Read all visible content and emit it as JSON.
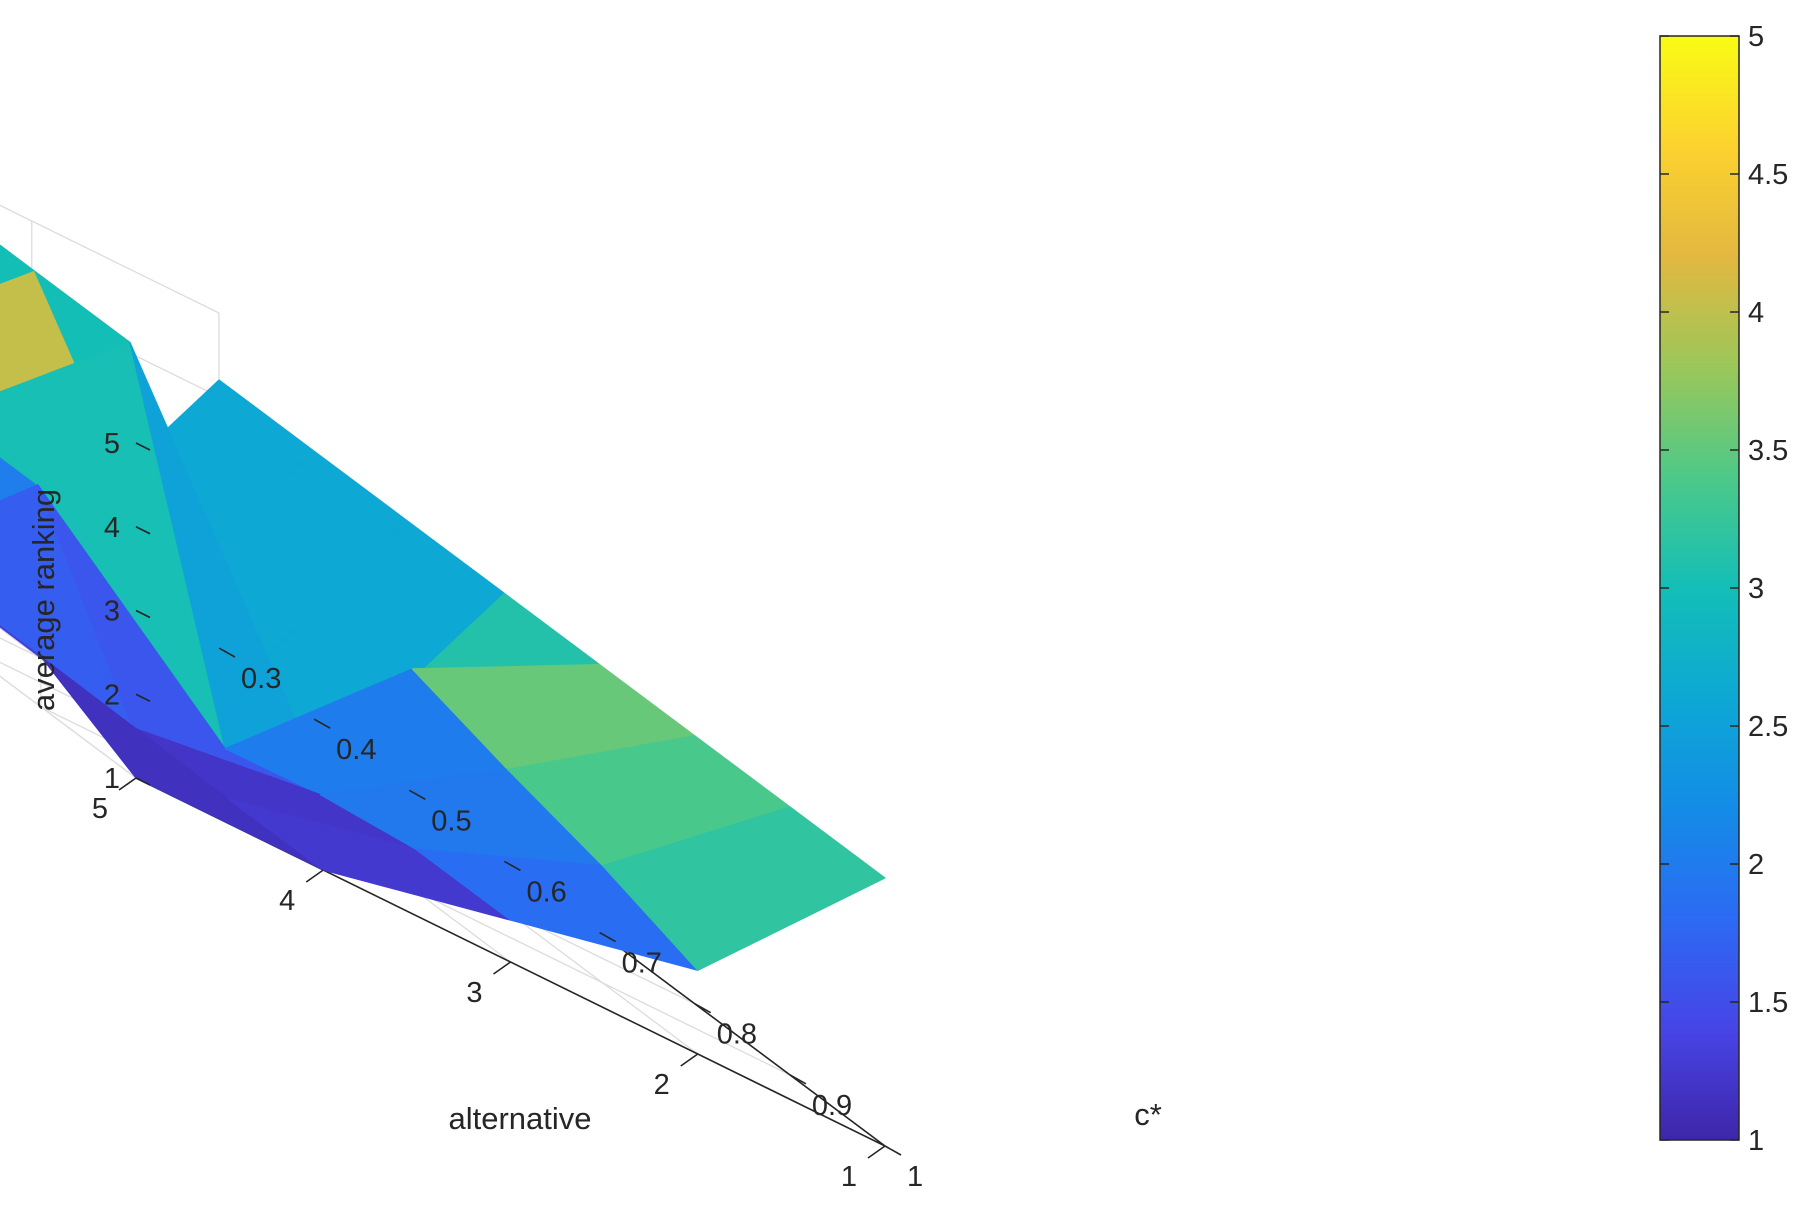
{
  "chart_data": {
    "type": "surface3d",
    "title": "",
    "x_axis": {
      "label": "c*",
      "ticks": [
        "0.3",
        "0.4",
        "0.5",
        "0.6",
        "0.7",
        "0.8",
        "0.9",
        "1"
      ],
      "range": [
        0.3,
        1
      ]
    },
    "y_axis": {
      "label": "alternative",
      "ticks": [
        "1",
        "2",
        "3",
        "4",
        "5"
      ],
      "range": [
        1,
        5
      ]
    },
    "z_axis": {
      "label": "average ranking",
      "ticks": [
        "1",
        "2",
        "3",
        "4",
        "5"
      ],
      "range": [
        1,
        5
      ]
    },
    "colorbar": {
      "ticks": [
        "1",
        "1.5",
        "2",
        "2.5",
        "3",
        "3.5",
        "4",
        "4.5",
        "5"
      ],
      "range": [
        1,
        5
      ],
      "colormap": "parula"
    },
    "grid": true,
    "surface": {
      "c_values": [
        0.3,
        0.4,
        0.5,
        0.6,
        0.7,
        0.8,
        0.9,
        1.0
      ],
      "alternatives": [
        1,
        2,
        3,
        4,
        5
      ],
      "average_ranking": [
        [
          4.2,
          4.2,
          4.2,
          4.2,
          4.2,
          4.2,
          4.2,
          4.2
        ],
        [
          1.0,
          1.0,
          1.0,
          1.0,
          3.05,
          2.7,
          2.4,
          2.0
        ],
        [
          5.0,
          5.0,
          5.0,
          5.0,
          1.0,
          1.3,
          1.5,
          1.5
        ],
        [
          3.05,
          3.05,
          3.05,
          3.05,
          3.05,
          1.0,
          1.0,
          1.0
        ],
        [
          1.0,
          1.0,
          1.0,
          1.0,
          1.0,
          1.6,
          1.6,
          1.0
        ]
      ]
    }
  }
}
